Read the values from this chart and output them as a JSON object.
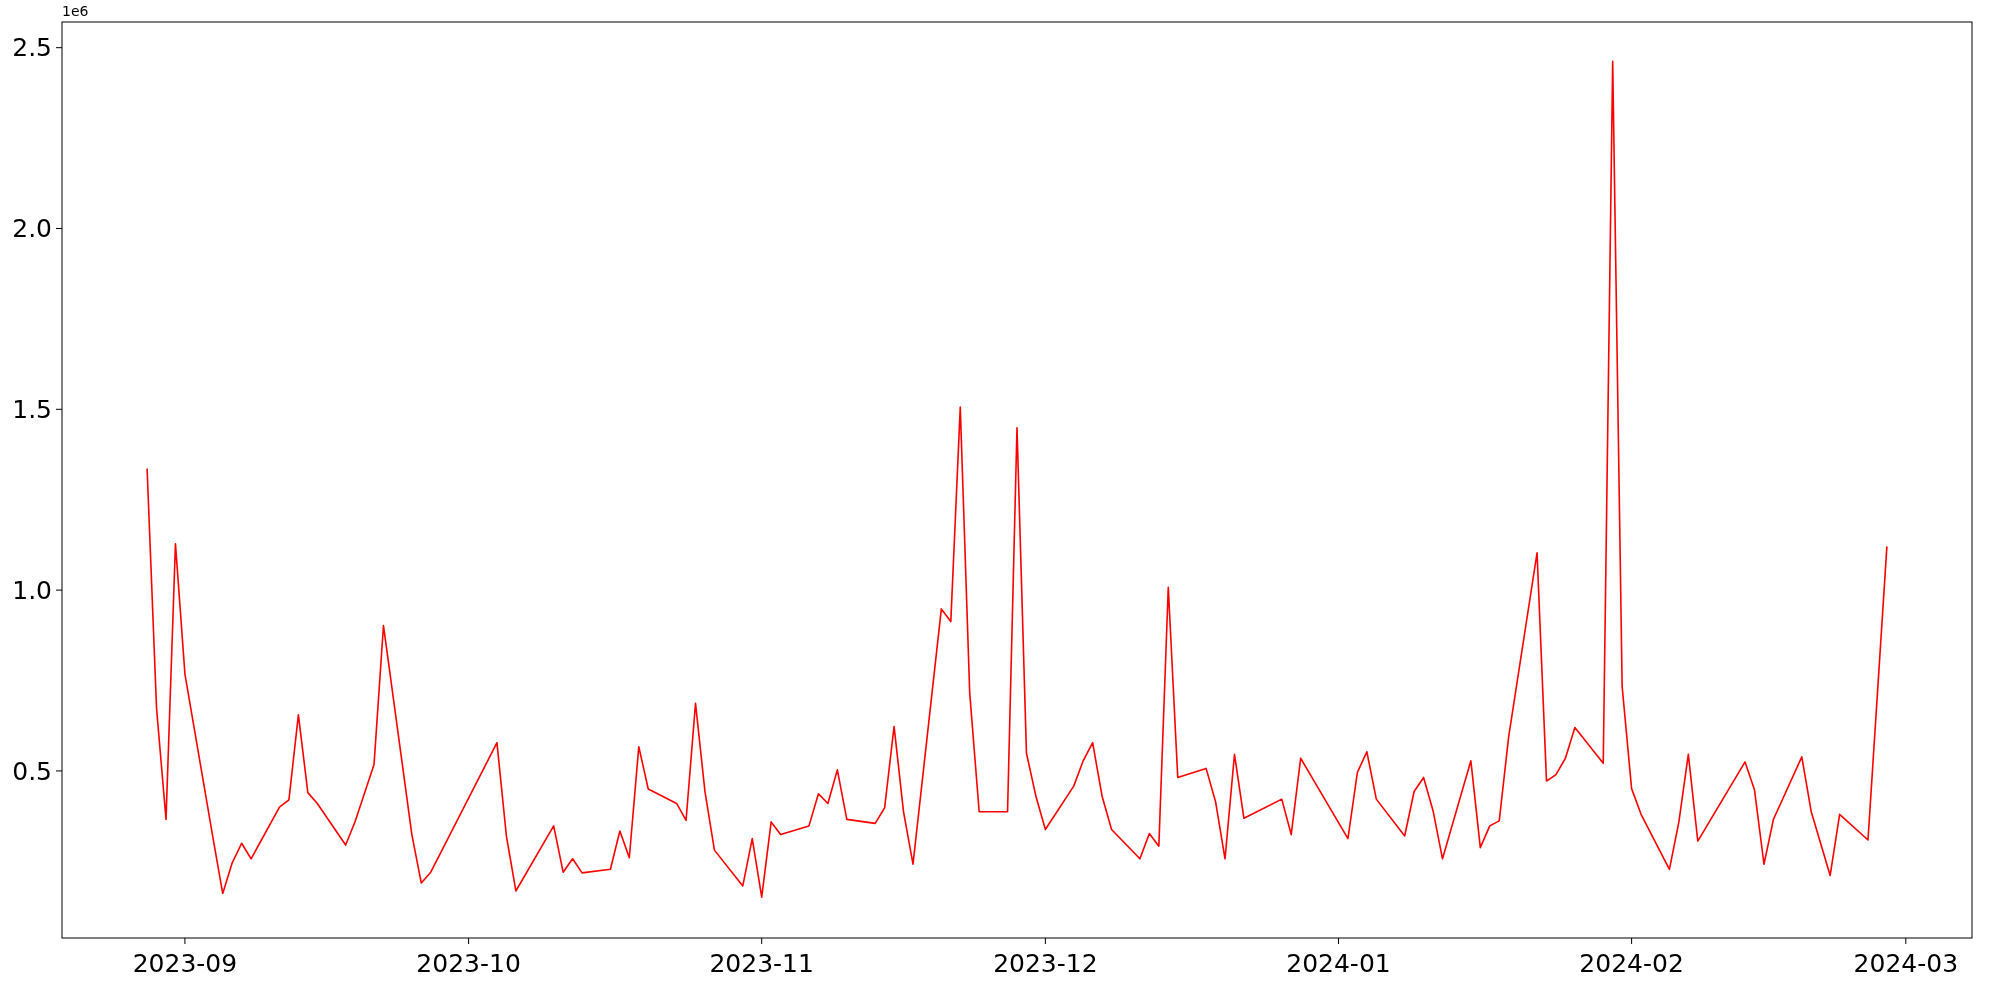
{
  "chart_data": {
    "type": "line",
    "annotations": [
      "1e6"
    ],
    "x": [
      "2023-08-28",
      "2023-08-29",
      "2023-08-30",
      "2023-08-31",
      "2023-09-01",
      "2023-09-04",
      "2023-09-05",
      "2023-09-06",
      "2023-09-07",
      "2023-09-08",
      "2023-09-11",
      "2023-09-12",
      "2023-09-13",
      "2023-09-14",
      "2023-09-15",
      "2023-09-18",
      "2023-09-19",
      "2023-09-21",
      "2023-09-22",
      "2023-09-25",
      "2023-09-26",
      "2023-09-27",
      "2023-10-04",
      "2023-10-05",
      "2023-10-06",
      "2023-10-10",
      "2023-10-11",
      "2023-10-12",
      "2023-10-13",
      "2023-10-16",
      "2023-10-17",
      "2023-10-18",
      "2023-10-19",
      "2023-10-20",
      "2023-10-23",
      "2023-10-24",
      "2023-10-25",
      "2023-10-26",
      "2023-10-27",
      "2023-10-30",
      "2023-10-31",
      "2023-11-01",
      "2023-11-02",
      "2023-11-03",
      "2023-11-06",
      "2023-11-07",
      "2023-11-08",
      "2023-11-09",
      "2023-11-10",
      "2023-11-13",
      "2023-11-14",
      "2023-11-15",
      "2023-11-16",
      "2023-11-17",
      "2023-11-20",
      "2023-11-21",
      "2023-11-22",
      "2023-11-23",
      "2023-11-24",
      "2023-11-27",
      "2023-11-28",
      "2023-11-29",
      "2023-11-30",
      "2023-12-01",
      "2023-12-04",
      "2023-12-05",
      "2023-12-06",
      "2023-12-07",
      "2023-12-08",
      "2023-12-11",
      "2023-12-12",
      "2023-12-13",
      "2023-12-14",
      "2023-12-15",
      "2023-12-18",
      "2023-12-19",
      "2023-12-20",
      "2023-12-21",
      "2023-12-22",
      "2023-12-26",
      "2023-12-27",
      "2023-12-28",
      "2024-01-02",
      "2024-01-03",
      "2024-01-04",
      "2024-01-05",
      "2024-01-08",
      "2024-01-09",
      "2024-01-10",
      "2024-01-11",
      "2024-01-12",
      "2024-01-15",
      "2024-01-16",
      "2024-01-17",
      "2024-01-18",
      "2024-01-19",
      "2024-01-22",
      "2024-01-23",
      "2024-01-24",
      "2024-01-25",
      "2024-01-26",
      "2024-01-29",
      "2024-01-30",
      "2024-01-31",
      "2024-02-01",
      "2024-02-02",
      "2024-02-05",
      "2024-02-06",
      "2024-02-07",
      "2024-02-08",
      "2024-02-13",
      "2024-02-14",
      "2024-02-15",
      "2024-02-16",
      "2024-02-19",
      "2024-02-20",
      "2024-02-22",
      "2024-02-23",
      "2024-02-26",
      "2024-02-28"
    ],
    "series": [
      {
        "color": "#ff0000",
        "values": [
          1.336,
          0.673,
          0.366,
          1.128,
          0.768,
          0.31,
          0.161,
          0.246,
          0.3,
          0.257,
          0.4,
          0.42,
          0.655,
          0.44,
          0.41,
          0.295,
          0.36,
          0.518,
          0.902,
          0.324,
          0.19,
          0.22,
          0.578,
          0.32,
          0.168,
          0.348,
          0.22,
          0.257,
          0.218,
          0.228,
          0.334,
          0.26,
          0.567,
          0.45,
          0.41,
          0.363,
          0.687,
          0.443,
          0.281,
          0.182,
          0.313,
          0.151,
          0.359,
          0.324,
          0.348,
          0.437,
          0.41,
          0.503,
          0.366,
          0.355,
          0.398,
          0.623,
          0.387,
          0.242,
          0.948,
          0.913,
          1.506,
          0.715,
          0.387,
          0.387,
          1.449,
          0.549,
          0.43,
          0.338,
          0.458,
          0.528,
          0.578,
          0.43,
          0.338,
          0.257,
          0.327,
          0.292,
          1.008,
          0.482,
          0.507,
          0.415,
          0.257,
          0.546,
          0.369,
          0.422,
          0.324,
          0.535,
          0.313,
          0.496,
          0.553,
          0.422,
          0.32,
          0.443,
          0.482,
          0.39,
          0.257,
          0.528,
          0.288,
          0.348,
          0.362,
          0.595,
          1.103,
          0.472,
          0.49,
          0.535,
          0.62,
          0.521,
          2.462,
          0.733,
          0.451,
          0.38,
          0.228,
          0.359,
          0.546,
          0.306,
          0.525,
          0.447,
          0.242,
          0.366,
          0.539,
          0.387,
          0.211,
          0.38,
          0.309,
          1.121
        ]
      }
    ],
    "xlim": [
      "2023-08-19",
      "2024-03-08"
    ],
    "xticks": [
      "2023-09",
      "2023-10",
      "2023-11",
      "2023-12",
      "2024-01",
      "2024-02",
      "2024-03"
    ],
    "ylim": [
      0.038,
      2.571
    ],
    "yticks": [
      {
        "value": 0.5,
        "label": "0.5"
      },
      {
        "value": 1,
        "label": "1.0"
      },
      {
        "value": 1.5,
        "label": "1.5"
      },
      {
        "value": 2,
        "label": "2.0"
      },
      {
        "value": 2.5,
        "label": "2.5"
      }
    ],
    "grid": false,
    "line_style": "solid",
    "marker": "none"
  }
}
